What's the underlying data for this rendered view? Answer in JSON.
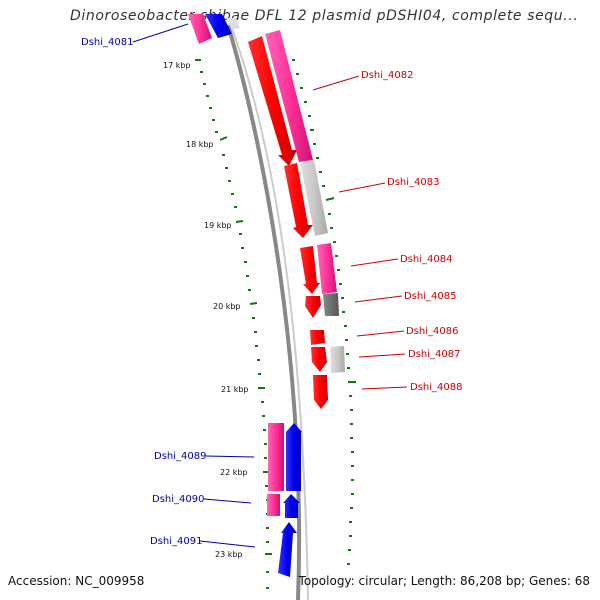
{
  "title": "Dinoroseobacter shibae DFL 12 plasmid pDSHI04, complete sequ...",
  "footer": {
    "accession": "Accession: NC_009958",
    "summary": "Topology: circular; Length: 86,208 bp; Genes: 68"
  },
  "ticks": [
    "17 kbp",
    "18 kbp",
    "19 kbp",
    "20 kbp",
    "21 kbp",
    "22 kbp",
    "23 kbp"
  ],
  "genes_right": [
    "Dshi_4082",
    "Dshi_4083",
    "Dshi_4084",
    "Dshi_4085",
    "Dshi_4086",
    "Dshi_4087",
    "Dshi_4088"
  ],
  "genes_left": [
    "Dshi_4081",
    "Dshi_4089",
    "Dshi_4090",
    "Dshi_4091"
  ],
  "colors": {
    "forward_label": "#cc0000",
    "reverse_label": "#0000aa",
    "cds_forward": "#ff0000",
    "cds_reverse": "#0000ee",
    "gene_pink": "#ff3399",
    "gene_grey": "#c8c8c8",
    "backbone": "#888888",
    "tick_green": "#117711"
  }
}
